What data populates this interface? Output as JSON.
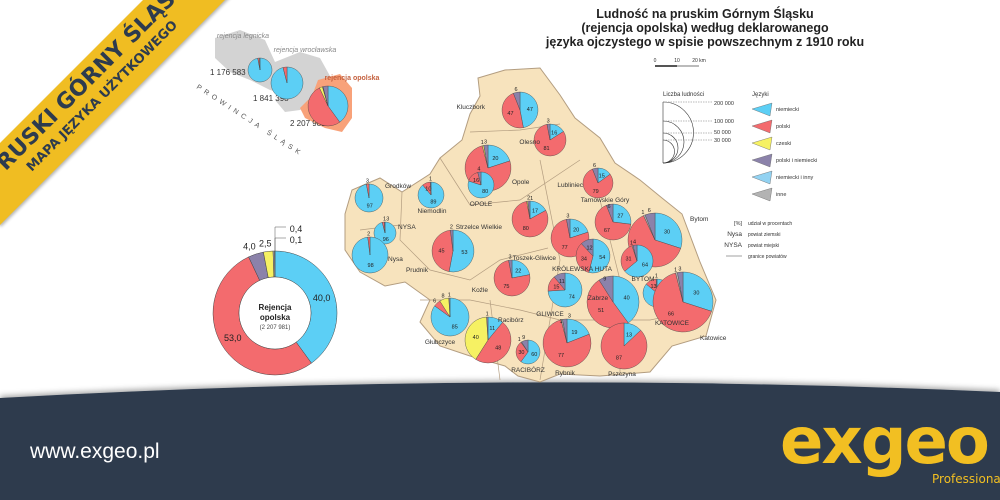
{
  "banner": {
    "title": "PRUSKI GÓRNY ŚLĄSK",
    "subtitle": "MAPA JĘZYKA UŻYTKOWEGO"
  },
  "title": [
    "Ludność na pruskim Górnym Śląsku",
    "(rejencja opolska) według deklarowanego",
    "języka ojczystego w spisie powszechnym z 1910 roku"
  ],
  "scale": {
    "labels": [
      "0",
      "10",
      "20 km"
    ]
  },
  "colors": {
    "niemiecki": "#5ccff5",
    "polski": "#f36b6e",
    "czeski": "#f6f163",
    "polski_i_niemiecki": "#8b82aa",
    "niemiecki_i_inny": "#92d2f2",
    "inne": "#b3b3b3",
    "map_fill": "#f7e3bd",
    "border": "#a08a70",
    "footer": "#2d3b4e",
    "brand": "#f2bf22"
  },
  "legend": {
    "population_title": "Liczba ludności",
    "population_levels": [
      "200 000",
      "100 000",
      "50 000",
      "30 000"
    ],
    "languages_title": "Języki",
    "languages": [
      {
        "key": "niemiecki",
        "label": "niemiecki"
      },
      {
        "key": "polski",
        "label": "polski"
      },
      {
        "key": "czeski",
        "label": "czeski"
      },
      {
        "key": "polski_i_niemiecki",
        "label": "polski i niemiecki"
      },
      {
        "key": "niemiecki_i_inny",
        "label": "niemiecki i inny"
      },
      {
        "key": "inne",
        "label": "inne"
      }
    ],
    "notes": [
      {
        "sym": "[%]",
        "text": "udział w procentach"
      },
      {
        "sym": "Nysa",
        "text": "powiat ziemski"
      },
      {
        "sym": "NYSA",
        "text": "powiat miejski"
      },
      {
        "sym": "",
        "text": "granice powiatów"
      }
    ]
  },
  "inset": {
    "province_label": "PROWINCJA ŚLĄSK",
    "regions": [
      {
        "name": "rejencja legnicka",
        "population": "1 176 583",
        "shares": {
          "niemiecki": 97,
          "polski": 2,
          "inne": 1
        }
      },
      {
        "name": "rejencja wrocławska",
        "population": "1 841 398",
        "shares": {
          "niemiecki": 96,
          "polski": 4
        }
      },
      {
        "name": "rejencja opolska",
        "population": "2 207 981",
        "shares": {
          "niemiecki": 40,
          "polski": 53,
          "polski_i_niemiecki": 4,
          "czeski": 2.5,
          "inne": 0.4,
          "niemiecki_i_inny": 0.1
        }
      }
    ]
  },
  "donut": {
    "title": "Rejencja opolska",
    "subtitle": "(2 207 981)",
    "segments": [
      {
        "key": "niemiecki",
        "value": 40.0,
        "label": "40,0"
      },
      {
        "key": "polski",
        "value": 53.0,
        "label": "53,0"
      },
      {
        "key": "polski_i_niemiecki",
        "value": 4.0,
        "label": "4,0"
      },
      {
        "key": "czeski",
        "value": 2.5,
        "label": "2,5"
      },
      {
        "key": "inne",
        "value": 0.4,
        "label": "0,4"
      },
      {
        "key": "niemiecki_i_inny",
        "value": 0.1,
        "label": "0,1"
      }
    ]
  },
  "districts": [
    {
      "name": "Kluczbork",
      "shares": {
        "niemiecki": 47,
        "polski": 47,
        "polski_i_niemiecki": 6
      }
    },
    {
      "name": "Olesno",
      "shares": {
        "niemiecki": 16,
        "polski": 81,
        "polski_i_niemiecki": 3
      }
    },
    {
      "name": "Opole",
      "shares": {
        "niemiecki": 20,
        "polski": 76,
        "polski_i_niemiecki": 3,
        "czeski": 1
      }
    },
    {
      "name": "OPOLE",
      "shares": {
        "niemiecki": 80,
        "polski": 16,
        "polski_i_niemiecki": 4
      }
    },
    {
      "name": "Lubliniec",
      "shares": {
        "niemiecki": 15,
        "polski": 79,
        "polski_i_niemiecki": 6
      }
    },
    {
      "name": "Grodków",
      "shares": {
        "niemiecki": 97,
        "polski": 3
      }
    },
    {
      "name": "Niemodlin",
      "shares": {
        "niemiecki": 89,
        "polski": 10,
        "polski_i_niemiecki": 1
      }
    },
    {
      "name": "NYSA",
      "shares": {
        "niemiecki": 96,
        "polski": 3,
        "polski_i_niemiecki": 1
      }
    },
    {
      "name": "Nysa",
      "shares": {
        "niemiecki": 98,
        "polski": 2
      }
    },
    {
      "name": "Prudnik",
      "shares": {
        "niemiecki": 53,
        "polski": 45,
        "polski_i_niemiecki": 2
      }
    },
    {
      "name": "Strzelce Wielkie",
      "shares": {
        "niemiecki": 17,
        "polski": 80,
        "polski_i_niemiecki": 2,
        "czeski": 1
      }
    },
    {
      "name": "Toszek-Gliwice",
      "shares": {
        "niemiecki": 20,
        "polski": 77,
        "polski_i_niemiecki": 3
      }
    },
    {
      "name": "Tarnowskie Góry",
      "shares": {
        "niemiecki": 27,
        "polski": 67,
        "polski_i_niemiecki": 6
      }
    },
    {
      "name": "Bytom",
      "shares": {
        "niemiecki": 30,
        "polski": 63,
        "polski_i_niemiecki": 6,
        "inne": 1
      }
    },
    {
      "name": "KRÓLEWSKA HUTA",
      "shares": {
        "niemiecki": 54,
        "polski": 34,
        "polski_i_niemiecki": 12
      }
    },
    {
      "name": "BYTOM",
      "shares": {
        "niemiecki": 64,
        "polski": 31,
        "polski_i_niemiecki": 4,
        "inne": 1
      }
    },
    {
      "name": "Koźle",
      "shares": {
        "niemiecki": 22,
        "polski": 75,
        "polski_i_niemiecki": 3
      }
    },
    {
      "name": "GLIWICE",
      "shares": {
        "niemiecki": 74,
        "polski": 15,
        "polski_i_niemiecki": 11
      }
    },
    {
      "name": "Zabrze",
      "shares": {
        "niemiecki": 40,
        "polski": 51,
        "polski_i_niemiecki": 9
      }
    },
    {
      "name": "KATOWICE",
      "shares": {
        "niemiecki": 86,
        "polski": 13,
        "polski_i_niemiecki": 1
      }
    },
    {
      "name": "Katowice",
      "shares": {
        "niemiecki": 30,
        "polski": 66,
        "polski_i_niemiecki": 3,
        "inne": 1
      }
    },
    {
      "name": "Głubczyce",
      "shares": {
        "niemiecki": 85,
        "czeski": 8,
        "polski": 6,
        "polski_i_niemiecki": 1
      }
    },
    {
      "name": "Racibórz",
      "shares": {
        "niemiecki": 11,
        "polski": 48,
        "czeski": 40,
        "polski_i_niemiecki": 1
      }
    },
    {
      "name": "RACIBÓRZ",
      "shares": {
        "niemiecki": 60,
        "polski": 30,
        "polski_i_niemiecki": 9,
        "inne": 1
      }
    },
    {
      "name": "Rybnik",
      "shares": {
        "niemiecki": 19,
        "polski": 77,
        "polski_i_niemiecki": 3,
        "inne": 1
      }
    },
    {
      "name": "Pszczyna",
      "shares": {
        "niemiecki": 13,
        "polski": 87
      }
    }
  ],
  "footer": {
    "url": "www.exgeo.pl",
    "logo": "exgeo",
    "tagline": "Professional Map"
  }
}
